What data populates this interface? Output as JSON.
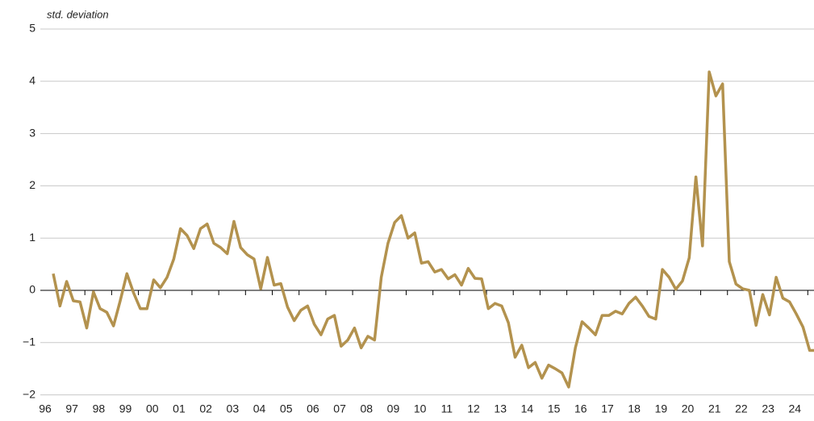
{
  "chart_data": {
    "type": "line",
    "y_label": "std. deviation",
    "categories": [
      "96",
      null,
      null,
      null,
      "97",
      null,
      null,
      null,
      "98",
      null,
      null,
      null,
      "99",
      null,
      null,
      null,
      "00",
      null,
      null,
      null,
      "01",
      null,
      null,
      null,
      "02",
      null,
      null,
      null,
      "03",
      null,
      null,
      null,
      "04",
      null,
      null,
      null,
      "05",
      null,
      null,
      null,
      "06",
      null,
      null,
      null,
      "07",
      null,
      null,
      null,
      "08",
      null,
      null,
      null,
      "09",
      null,
      null,
      null,
      "10",
      null,
      null,
      null,
      "11",
      null,
      null,
      null,
      "12",
      null,
      null,
      null,
      "13",
      null,
      null,
      null,
      "14",
      null,
      null,
      null,
      "15",
      null,
      null,
      null,
      "16",
      null,
      null,
      null,
      "17",
      null,
      null,
      null,
      "18",
      null,
      null,
      null,
      "19",
      null,
      null,
      null,
      "20",
      null,
      null,
      null,
      "21",
      null,
      null,
      null,
      "22",
      null,
      null,
      null,
      "23",
      null,
      null,
      null,
      "24",
      null,
      null
    ],
    "values": [
      0.32,
      -0.3,
      0.17,
      -0.2,
      -0.22,
      -0.72,
      -0.03,
      -0.35,
      -0.42,
      -0.68,
      -0.2,
      0.32,
      -0.05,
      -0.35,
      -0.35,
      0.2,
      0.05,
      0.25,
      0.6,
      1.18,
      1.05,
      0.8,
      1.18,
      1.27,
      0.9,
      0.82,
      0.7,
      1.32,
      0.82,
      0.68,
      0.6,
      0.03,
      0.63,
      0.1,
      0.13,
      -0.32,
      -0.58,
      -0.38,
      -0.3,
      -0.65,
      -0.85,
      -0.55,
      -0.48,
      -1.07,
      -0.95,
      -0.72,
      -1.1,
      -0.88,
      -0.95,
      0.25,
      0.9,
      1.3,
      1.43,
      1.0,
      1.1,
      0.52,
      0.55,
      0.35,
      0.4,
      0.22,
      0.3,
      0.1,
      0.42,
      0.23,
      0.22,
      -0.35,
      -0.25,
      -0.3,
      -0.62,
      -1.28,
      -1.05,
      -1.48,
      -1.38,
      -1.68,
      -1.43,
      -1.5,
      -1.58,
      -1.85,
      -1.1,
      -0.6,
      -0.72,
      -0.85,
      -0.48,
      -0.48,
      -0.4,
      -0.45,
      -0.25,
      -0.13,
      -0.3,
      -0.5,
      -0.55,
      0.4,
      0.25,
      0.02,
      0.18,
      0.62,
      2.17,
      0.85,
      4.18,
      3.72,
      3.95,
      0.55,
      0.12,
      0.03,
      0.0,
      -0.67,
      -0.08,
      -0.47,
      0.25,
      -0.15,
      -0.22,
      -0.45,
      -0.7,
      -1.15,
      -1.15
    ],
    "color": "#b3924e",
    "ylim": [
      -2,
      5
    ],
    "yticks": [
      {
        "value": -2,
        "label": "−2"
      },
      {
        "value": -1,
        "label": "−1"
      },
      0,
      1,
      2,
      3,
      4,
      5
    ],
    "grid": true
  }
}
